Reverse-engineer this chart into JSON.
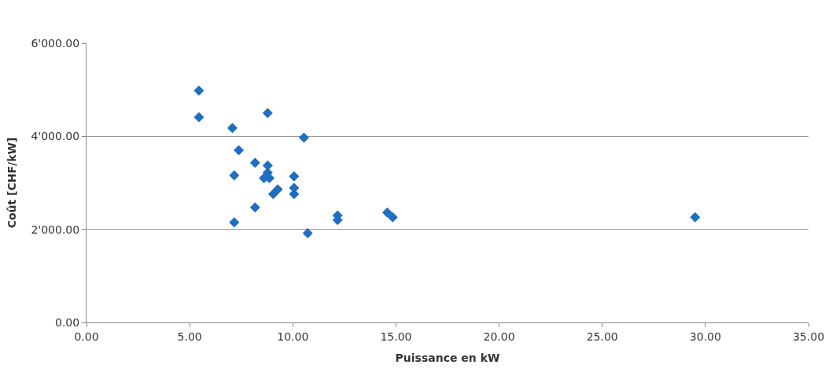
{
  "chart_data": {
    "type": "scatter",
    "xlabel": "Puissance en kW",
    "ylabel": "Coût [CHF/kW]",
    "x": [
      5.45,
      5.45,
      7.07,
      8.78,
      10.54,
      7.38,
      8.17,
      8.78,
      8.78,
      8.6,
      8.87,
      7.16,
      10.06,
      10.06,
      10.06,
      9.05,
      9.27,
      8.17,
      7.16,
      10.72,
      12.17,
      12.17,
      14.58,
      14.84,
      29.5
    ],
    "series": [
      {
        "color": "#1f6fc0",
        "values": [
          4980,
          4410,
          4180,
          4500,
          3970,
          3700,
          3430,
          3370,
          3220,
          3100,
          3100,
          3160,
          3140,
          2890,
          2760,
          2760,
          2860,
          2470,
          2150,
          1920,
          2300,
          2200,
          2360,
          2260,
          2260
        ]
      }
    ],
    "xlim": [
      0,
      35
    ],
    "xticks": [
      {
        "value": 0,
        "label": "0.00"
      },
      {
        "value": 5,
        "label": "5.00"
      },
      {
        "value": 10,
        "label": "10.00"
      },
      {
        "value": 15,
        "label": "15.00"
      },
      {
        "value": 20,
        "label": "20.00"
      },
      {
        "value": 25,
        "label": "25.00"
      },
      {
        "value": 30,
        "label": "30.00"
      },
      {
        "value": 35,
        "label": "35.00"
      }
    ],
    "ylim": [
      0,
      6000
    ],
    "yticks": [
      {
        "value": 0,
        "label": "0.00"
      },
      {
        "value": 2000,
        "label": "2'000.00"
      },
      {
        "value": 4000,
        "label": "4'000.00"
      },
      {
        "value": 6000,
        "label": "6'000.00"
      }
    ],
    "grid": "y",
    "marker": "diamond",
    "legend": false
  }
}
